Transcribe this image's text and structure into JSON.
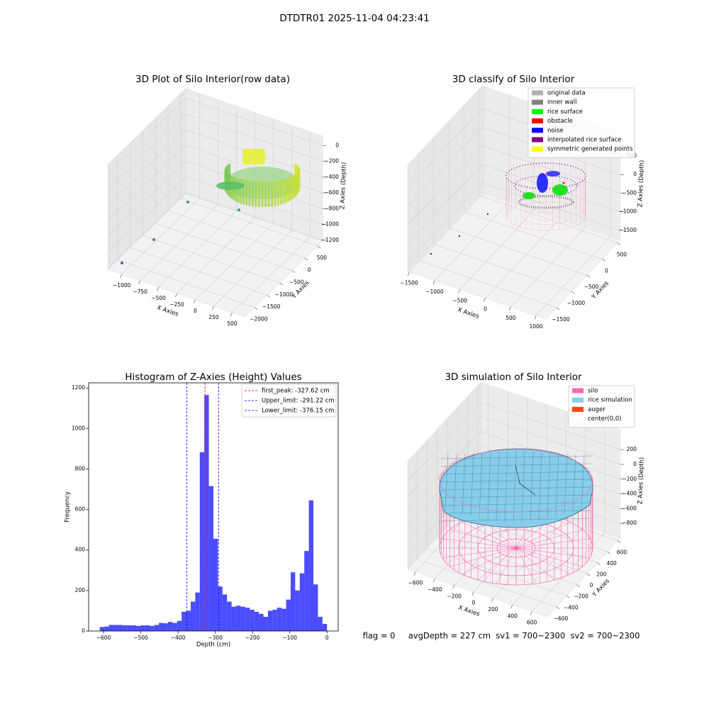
{
  "title": "DTDTR01 2025-11-04 04:23:41",
  "footer": "flag = 0     avgDepth = 227 cm  sv1 = 700~2300  sv2 = 700~2300",
  "chart_data": [
    {
      "type": "scatter3d",
      "title": "3D Plot of Silo Interior(row data)",
      "xlabel": "X Axies",
      "ylabel": "Y Axies",
      "zlabel": "Z Axies (Depth)",
      "grid": true,
      "xlim": [
        -1190,
        670
      ],
      "ylim": [
        -2390,
        700
      ],
      "zlim": [
        -1210,
        120
      ],
      "xticks": [
        {
          "value": -1000,
          "label": "−1000"
        },
        {
          "value": -750,
          "label": "−750"
        },
        {
          "value": -500,
          "label": "−500"
        },
        {
          "value": -250,
          "label": "−250"
        },
        0,
        250,
        500
      ],
      "yticks": [
        500,
        0,
        {
          "value": -500,
          "label": "−500"
        },
        {
          "value": -1000,
          "label": "−1000"
        },
        {
          "value": -1500,
          "label": "−1500"
        },
        {
          "value": -2000,
          "label": "−2000"
        }
      ],
      "zticks": [
        0,
        {
          "value": -200,
          "label": "−200"
        },
        {
          "value": -400,
          "label": "−400"
        },
        {
          "value": -600,
          "label": "−600"
        },
        {
          "value": -800,
          "label": "−800"
        },
        {
          "value": -1000,
          "label": "−1000"
        },
        {
          "value": -1200,
          "label": "−1200"
        }
      ]
    },
    {
      "type": "scatter3d",
      "title": "3D classify of Silo Interior",
      "xlabel": "X Axies",
      "ylabel": "Y Axies",
      "zlabel": "Z Axies (Depth)",
      "grid": true,
      "xlim": [
        -1530,
        1195
      ],
      "ylim": [
        -1850,
        595
      ],
      "zlim": [
        -1750,
        1110
      ],
      "xticks": [
        {
          "value": -1500,
          "label": "−1500"
        },
        {
          "value": -1000,
          "label": "−1000"
        },
        {
          "value": -500,
          "label": "−500"
        },
        0,
        500,
        1000
      ],
      "yticks": [
        500,
        0,
        {
          "value": -500,
          "label": "−500"
        },
        {
          "value": -1000,
          "label": "−1000"
        },
        {
          "value": -1500,
          "label": "−1500"
        }
      ],
      "zticks": [
        500,
        0,
        {
          "value": -500,
          "label": "−500"
        },
        {
          "value": -1000,
          "label": "−1000"
        },
        {
          "value": -1500,
          "label": "−1500"
        }
      ],
      "legend": "upper right",
      "legend_entries": [
        {
          "name": "original data",
          "color": "#b0b0b0"
        },
        {
          "name": "inner wall",
          "color": "#808080"
        },
        {
          "name": "rice surface",
          "color": "#00ff00"
        },
        {
          "name": "obstacle",
          "color": "#ff0000"
        },
        {
          "name": "noise",
          "color": "#0000ff"
        },
        {
          "name": "interpolated rice surface",
          "color": "#800080"
        },
        {
          "name": "symmetric generated points",
          "color": "#ffff00"
        }
      ]
    },
    {
      "type": "histogram",
      "title": "Histogram of Z-Axies (Height) Values",
      "xlabel": "Depth (cm)",
      "ylabel": "Frequency",
      "color": "#0000ff",
      "alpha": 0.7,
      "bins": [
        -610,
        -597.8,
        -585.6,
        -573.4,
        -561.2,
        -549,
        -536.8,
        -524.6,
        -512.4,
        -500.2,
        -488,
        -475.8,
        -463.6,
        -451.4,
        -439.2,
        -427,
        -414.8,
        -402.6,
        -390.4,
        -378.2,
        -366,
        -353.8,
        -341.6,
        -329.4,
        -317.2,
        -305,
        -292.8,
        -280.6,
        -268.4,
        -256.2,
        -244,
        -231.8,
        -219.6,
        -207.4,
        -195.2,
        -183,
        -170.8,
        -158.6,
        -146.4,
        -134.2,
        -122,
        -109.8,
        -97.6,
        -85.4,
        -73.2,
        -61,
        -48.8,
        -36.6,
        -24.4,
        -12.2,
        0
      ],
      "counts": [
        20,
        22,
        30,
        30,
        30,
        28,
        28,
        28,
        25,
        28,
        28,
        25,
        30,
        40,
        38,
        45,
        40,
        50,
        95,
        100,
        145,
        190,
        883,
        1165,
        715,
        455,
        220,
        180,
        145,
        120,
        125,
        120,
        115,
        105,
        95,
        85,
        70,
        100,
        105,
        115,
        110,
        155,
        290,
        200,
        285,
        395,
        645,
        230,
        70,
        35
      ],
      "xlim": [
        -640,
        30
      ],
      "ylim": [
        0,
        1225
      ],
      "xticks": [
        {
          "value": -600,
          "label": "−600"
        },
        {
          "value": -500,
          "label": "−500"
        },
        {
          "value": -400,
          "label": "−400"
        },
        {
          "value": -300,
          "label": "−300"
        },
        {
          "value": -200,
          "label": "−200"
        },
        {
          "value": -100,
          "label": "−100"
        },
        0
      ],
      "yticks": [
        0,
        200,
        400,
        600,
        800,
        1000,
        1200
      ],
      "legend": "upper right",
      "vlines": [
        {
          "name": "first_peak: -327.62 cm",
          "value": -327.62,
          "color": "#ff0000"
        },
        {
          "name": "Upper_limit: -291.22 cm",
          "value": -291.22,
          "color": "#0000ff"
        },
        {
          "name": "Lower_limit: -376.15 cm",
          "value": -376.15,
          "color": "#0000ff"
        }
      ]
    },
    {
      "type": "surface3d",
      "title": "3D simulation of Silo Interior",
      "xlabel": "X Axies",
      "ylabel": "Y Axies",
      "zlabel": "Z Axies (Depth)",
      "grid": true,
      "xlim": [
        -680,
        760
      ],
      "ylim": [
        -781,
        656
      ],
      "zlim": [
        -990,
        470
      ],
      "xticks": [
        {
          "value": -600,
          "label": "−600"
        },
        {
          "value": -400,
          "label": "−400"
        },
        {
          "value": -200,
          "label": "−200"
        },
        0,
        200,
        400,
        600
      ],
      "yticks": [
        600,
        400,
        200,
        0,
        {
          "value": -200,
          "label": "−200"
        },
        {
          "value": -400,
          "label": "−400"
        },
        {
          "value": -600,
          "label": "−600"
        }
      ],
      "zticks": [
        200,
        0,
        {
          "value": -200,
          "label": "−200"
        },
        {
          "value": -400,
          "label": "−400"
        },
        {
          "value": -600,
          "label": "−600"
        },
        {
          "value": -800,
          "label": "−800"
        }
      ],
      "legend": "upper right",
      "legend_entries": [
        {
          "name": "silo",
          "color": "#ff69b4"
        },
        {
          "name": "rice simulation",
          "color": "#87ceeb"
        },
        {
          "name": "auger",
          "color": "#ff4500"
        },
        {
          "name": "center(0,0)",
          "color": "#ffffff"
        }
      ]
    }
  ]
}
